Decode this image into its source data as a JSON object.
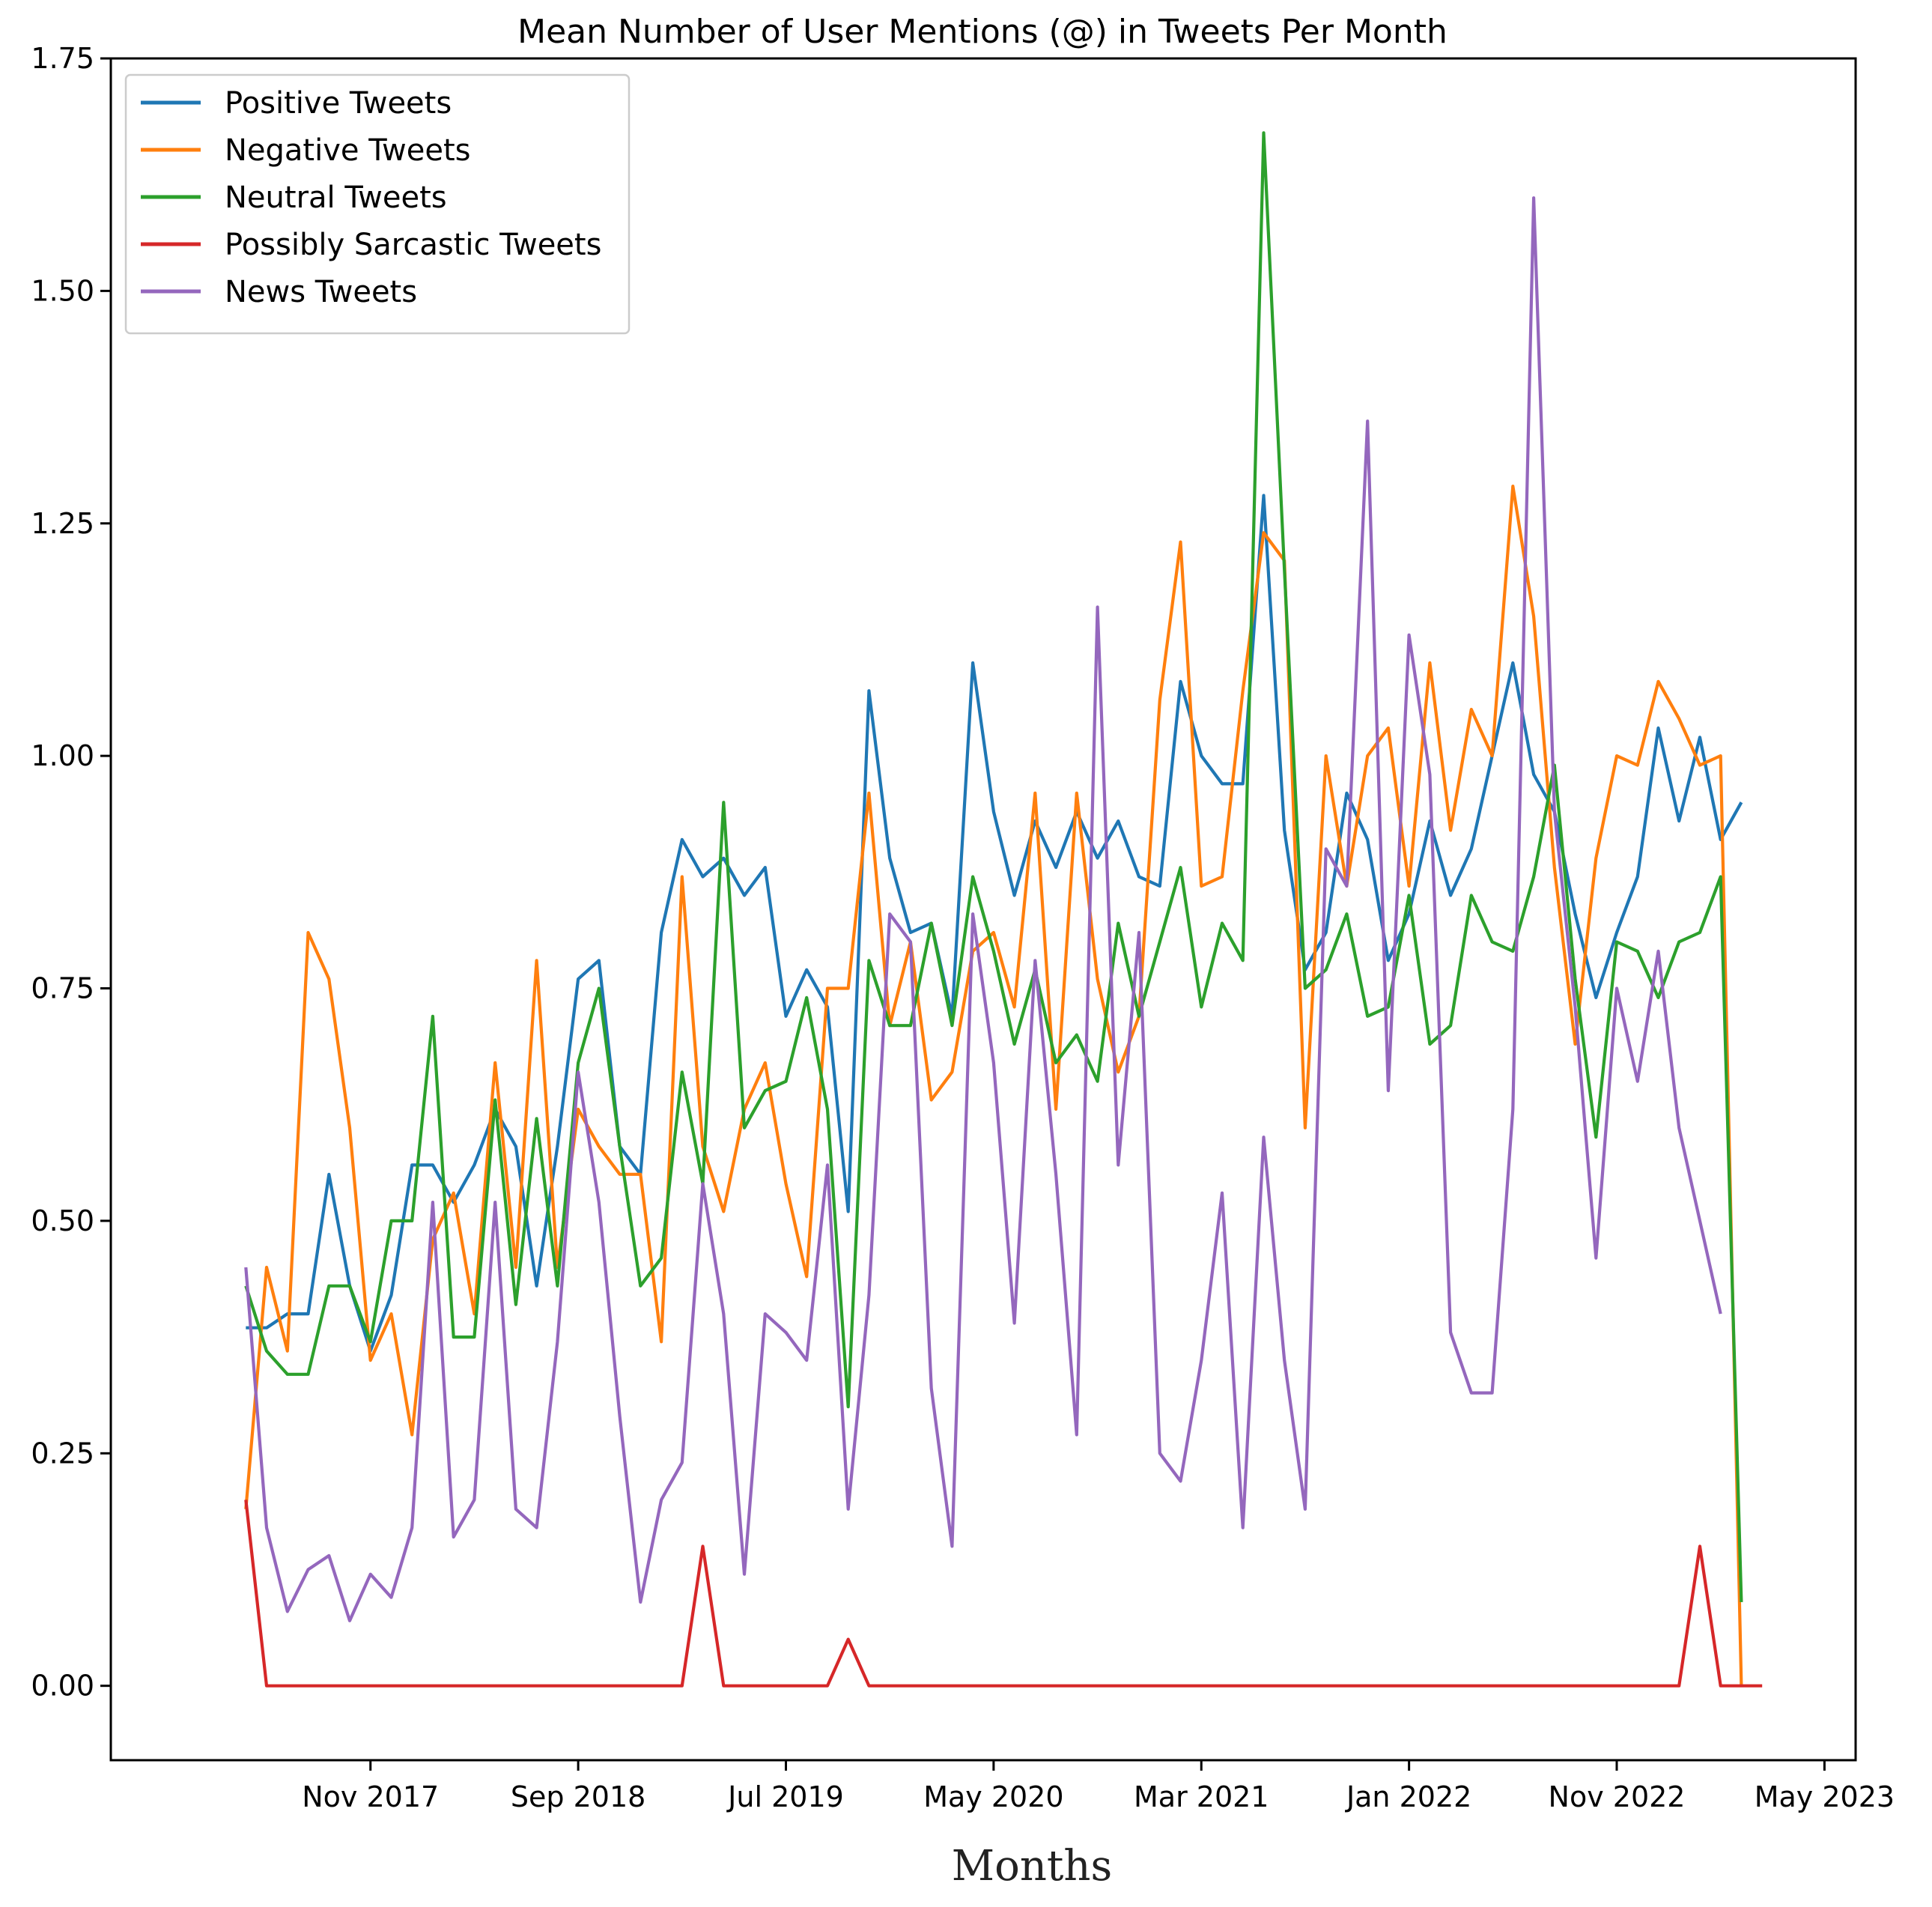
{
  "chart_data": {
    "type": "line",
    "title": "Mean Number of User Mentions (@) in Tweets Per Month",
    "xlabel": "Months",
    "ylabel": "",
    "ylim": [
      -0.08,
      1.75
    ],
    "y_ticks": [
      0.0,
      0.25,
      0.5,
      0.75,
      1.0,
      1.25,
      1.5,
      1.75
    ],
    "y_tick_labels": [
      "0.00",
      "0.25",
      "0.50",
      "0.75",
      "1.00",
      "1.25",
      "1.50",
      "1.75"
    ],
    "xlim": [
      -6.5,
      77.5
    ],
    "x_ticks": [
      6,
      16,
      26,
      36,
      46,
      56,
      66,
      76
    ],
    "x_tick_labels": [
      "Nov 2017",
      "Sep 2018",
      "Jul 2019",
      "May 2020",
      "Mar 2021",
      "Jan 2022",
      "Nov 2022",
      "May 2023"
    ],
    "legend_position": "top-left",
    "series": [
      {
        "name": "Positive Tweets",
        "color": "#1f77b4",
        "values": [
          0.385,
          0.385,
          0.4,
          0.4,
          0.55,
          0.43,
          0.36,
          0.42,
          0.56,
          0.56,
          0.52,
          0.56,
          0.62,
          0.58,
          0.43,
          0.58,
          0.76,
          0.78,
          0.58,
          0.55,
          0.81,
          0.91,
          0.87,
          0.89,
          0.85,
          0.88,
          0.72,
          0.77,
          0.73,
          0.51,
          1.07,
          0.89,
          0.81,
          0.82,
          0.72,
          1.1,
          0.94,
          0.85,
          0.93,
          0.88,
          0.94,
          0.89,
          0.93,
          0.87,
          0.86,
          1.08,
          1.0,
          0.97,
          0.97,
          1.28,
          0.92,
          0.77,
          0.81,
          0.96,
          0.91,
          0.78,
          0.83,
          0.93,
          0.85,
          0.9,
          1.0,
          1.1,
          0.98,
          0.94,
          0.83,
          0.74,
          0.81,
          0.87,
          1.03,
          0.93,
          1.02,
          0.91,
          0.95,
          null
        ]
      },
      {
        "name": "Negative Tweets",
        "color": "#ff7f0e",
        "values": [
          0.19,
          0.45,
          0.36,
          0.81,
          0.76,
          0.6,
          0.35,
          0.4,
          0.27,
          0.48,
          0.53,
          0.4,
          0.67,
          0.45,
          0.78,
          0.45,
          0.62,
          0.58,
          0.55,
          0.55,
          0.37,
          0.87,
          0.58,
          0.51,
          0.62,
          0.67,
          0.54,
          0.44,
          0.75,
          0.75,
          0.96,
          0.71,
          0.8,
          0.63,
          0.66,
          0.79,
          0.81,
          0.73,
          0.96,
          0.62,
          0.96,
          0.76,
          0.66,
          0.72,
          1.06,
          1.23,
          0.86,
          0.87,
          1.07,
          1.24,
          1.21,
          0.6,
          1.0,
          0.86,
          1.0,
          1.03,
          0.86,
          1.1,
          0.92,
          1.05,
          1.0,
          1.29,
          1.15,
          0.88,
          0.69,
          0.89,
          1.0,
          0.99,
          1.08,
          1.04,
          0.99,
          1.0,
          0.0,
          null
        ]
      },
      {
        "name": "Neutral Tweets",
        "color": "#2ca02c",
        "values": [
          0.43,
          0.36,
          0.335,
          0.335,
          0.43,
          0.43,
          0.37,
          0.5,
          0.5,
          0.72,
          0.375,
          0.375,
          0.63,
          0.41,
          0.61,
          0.43,
          0.67,
          0.75,
          0.58,
          0.43,
          0.46,
          0.66,
          0.54,
          0.95,
          0.6,
          0.64,
          0.65,
          0.74,
          0.62,
          0.3,
          0.78,
          0.71,
          0.71,
          0.82,
          0.71,
          0.87,
          0.79,
          0.69,
          0.77,
          0.67,
          0.7,
          0.65,
          0.82,
          0.72,
          0.8,
          0.88,
          0.73,
          0.82,
          0.78,
          1.67,
          1.2,
          0.75,
          0.77,
          0.83,
          0.72,
          0.73,
          0.85,
          0.69,
          0.71,
          0.85,
          0.8,
          0.79,
          0.87,
          0.99,
          0.76,
          0.59,
          0.8,
          0.79,
          0.74,
          0.8,
          0.81,
          0.87,
          0.09,
          null
        ]
      },
      {
        "name": "Possibly Sarcastic Tweets",
        "color": "#d62728",
        "values": [
          0.2,
          0.0,
          0.0,
          0.0,
          0.0,
          0.0,
          0.0,
          0.0,
          0.0,
          0.0,
          0.0,
          0.0,
          0.0,
          0.0,
          0.0,
          0.0,
          0.0,
          0.0,
          0.0,
          0.0,
          0.0,
          0.0,
          0.15,
          0.0,
          0.0,
          0.0,
          0.0,
          0.0,
          0.0,
          0.05,
          0.0,
          0.0,
          0.0,
          0.0,
          0.0,
          0.0,
          0.0,
          0.0,
          0.0,
          0.0,
          0.0,
          0.0,
          0.0,
          0.0,
          0.0,
          0.0,
          0.0,
          0.0,
          0.0,
          0.0,
          0.0,
          0.0,
          0.0,
          0.0,
          0.0,
          0.0,
          0.0,
          0.0,
          0.0,
          0.0,
          0.0,
          0.0,
          0.0,
          0.0,
          0.0,
          0.0,
          0.0,
          0.0,
          0.0,
          0.0,
          0.15,
          0.0,
          0.0,
          0.0
        ]
      },
      {
        "name": "News Tweets",
        "color": "#9467bd",
        "values": [
          0.45,
          0.17,
          0.08,
          0.125,
          0.14,
          0.07,
          0.12,
          0.095,
          0.17,
          0.52,
          0.16,
          0.2,
          0.52,
          0.19,
          0.17,
          0.37,
          0.66,
          0.52,
          0.29,
          0.09,
          0.2,
          0.24,
          0.54,
          0.4,
          0.12,
          0.4,
          0.38,
          0.35,
          0.56,
          0.19,
          0.42,
          0.83,
          0.8,
          0.32,
          0.15,
          0.83,
          0.67,
          0.39,
          0.78,
          0.55,
          0.27,
          1.16,
          0.56,
          0.81,
          0.25,
          0.22,
          0.35,
          0.53,
          0.17,
          0.59,
          0.35,
          0.19,
          0.9,
          0.86,
          1.36,
          0.64,
          1.13,
          0.98,
          0.38,
          0.315,
          0.315,
          0.62,
          1.6,
          0.94,
          0.73,
          0.46,
          0.75,
          0.65,
          0.79,
          0.6,
          0.5,
          0.4,
          null,
          null
        ]
      }
    ]
  }
}
